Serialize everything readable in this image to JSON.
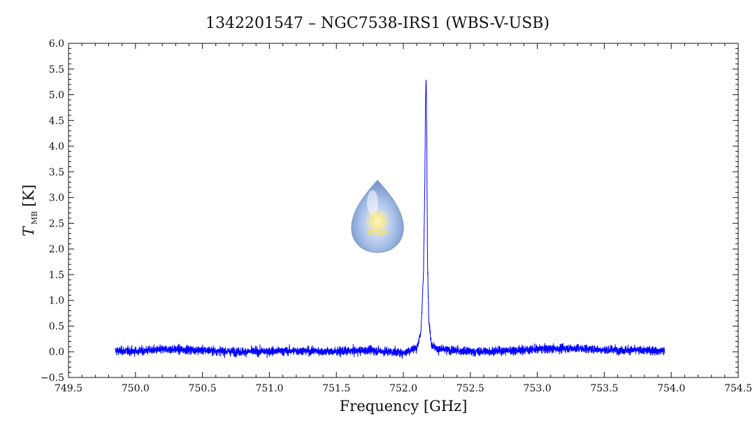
{
  "chart_data": {
    "type": "line",
    "title": "1342201547 – NGC7538-IRS1 (WBS-V-USB)",
    "xlabel": "Frequency [GHz]",
    "ylabel": {
      "main": "T",
      "subscript": "MB",
      "unit": "[K]"
    },
    "xlim": [
      749.5,
      754.5
    ],
    "ylim": [
      -0.5,
      6.0
    ],
    "xticks": [
      749.5,
      750.0,
      750.5,
      751.0,
      751.5,
      752.0,
      752.5,
      753.0,
      753.5,
      754.0,
      754.5
    ],
    "xtick_labels": [
      "749.5",
      "750.0",
      "750.5",
      "751.0",
      "751.5",
      "752.0",
      "752.5",
      "753.0",
      "753.5",
      "754.0",
      "754.5"
    ],
    "yticks": [
      -0.5,
      0.0,
      0.5,
      1.0,
      1.5,
      2.0,
      2.5,
      3.0,
      3.5,
      4.0,
      4.5,
      5.0,
      5.5,
      6.0
    ],
    "ytick_labels": [
      "−0.5",
      "0.0",
      "0.5",
      "1.0",
      "1.5",
      "2.0",
      "2.5",
      "3.0",
      "3.5",
      "4.0",
      "4.5",
      "5.0",
      "5.5",
      "6.0"
    ],
    "grid": false,
    "series": [
      {
        "color": "#0000ff",
        "baseline_noise_rms": 0.06,
        "x": [
          749.85,
          750.0,
          750.25,
          750.5,
          750.75,
          751.0,
          751.25,
          751.5,
          751.75,
          752.0,
          752.1,
          752.13,
          752.15,
          752.16,
          752.165,
          752.17,
          752.175,
          752.18,
          752.19,
          752.21,
          752.25,
          752.5,
          752.75,
          753.0,
          753.25,
          753.5,
          753.75,
          753.95
        ],
        "y": [
          0.02,
          0.01,
          0.05,
          0.03,
          0.0,
          0.01,
          0.02,
          0.0,
          0.03,
          -0.02,
          0.08,
          0.35,
          1.5,
          3.2,
          4.8,
          5.4,
          4.2,
          1.8,
          0.6,
          0.15,
          0.05,
          0.0,
          0.02,
          0.05,
          0.07,
          0.04,
          0.03,
          0.02
        ]
      }
    ]
  },
  "logo": {
    "text": "WISH",
    "icon": "water-drop-star-icon"
  }
}
